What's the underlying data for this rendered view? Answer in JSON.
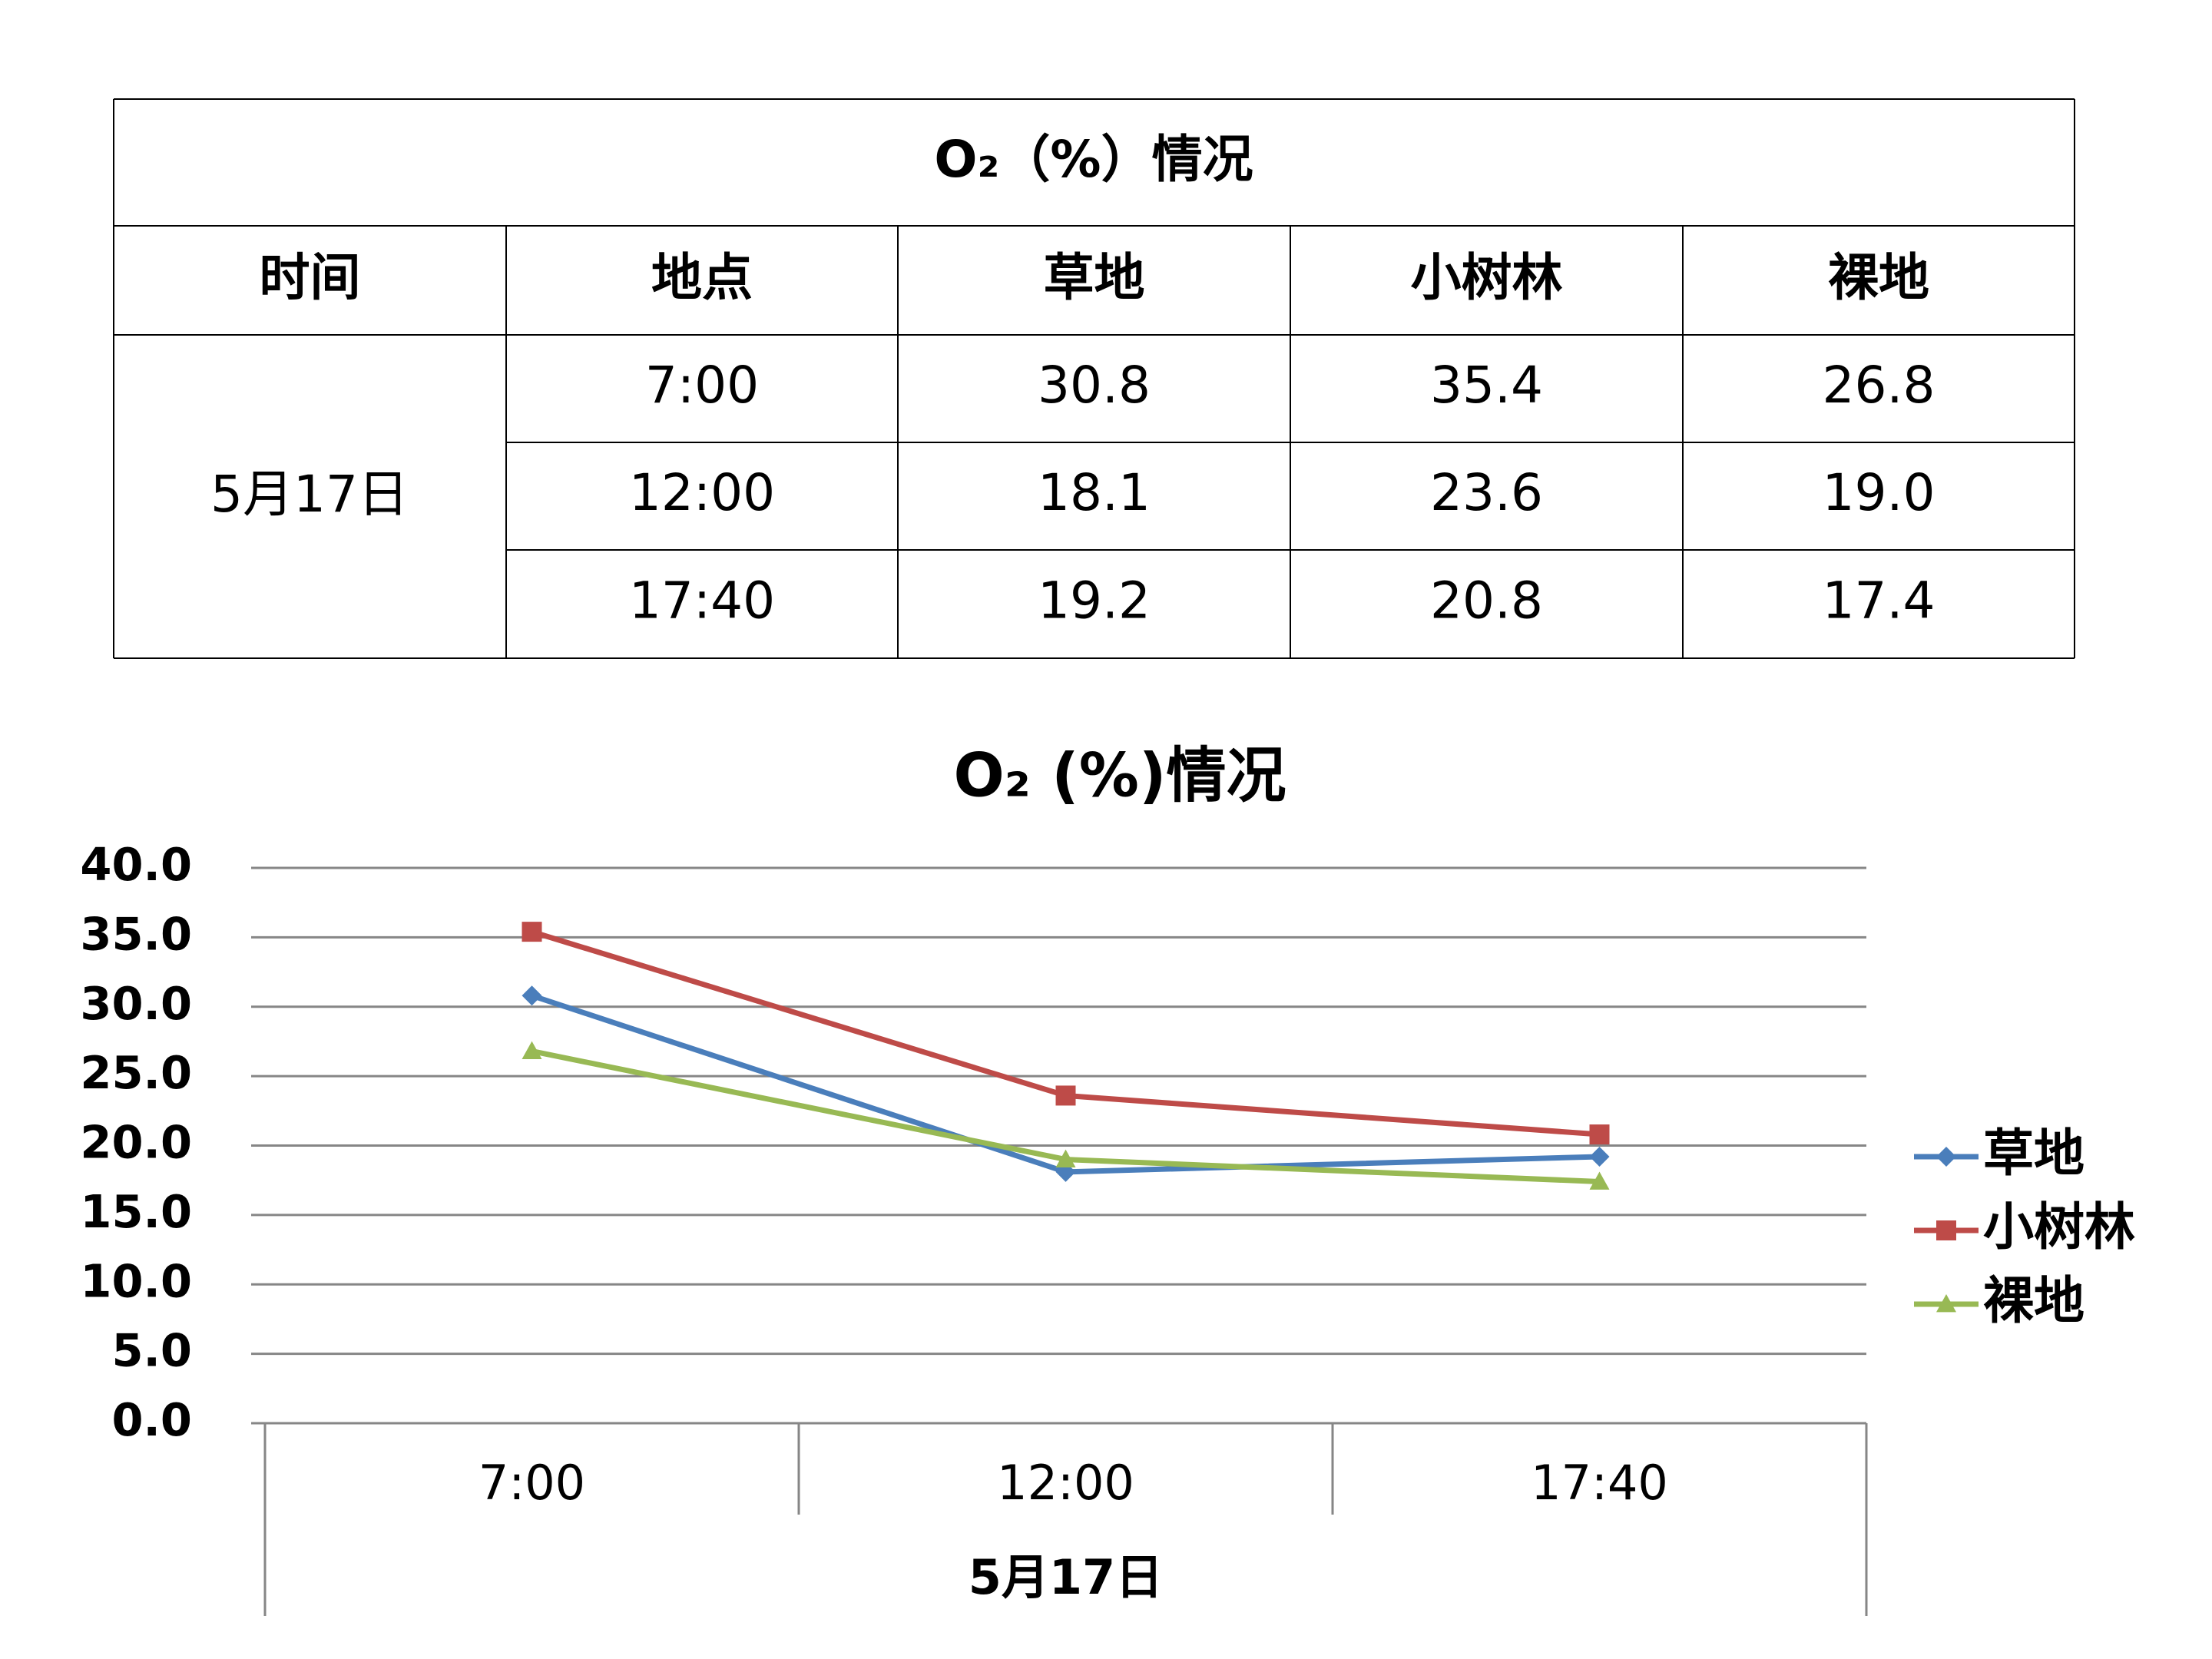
{
  "table": {
    "title": "O₂（%）情况",
    "header": [
      "时间",
      "地点",
      "草地",
      "小树林",
      "裸地"
    ],
    "date": "5月17日",
    "rows": [
      [
        "7:00",
        "30.8",
        "35.4",
        "26.8"
      ],
      [
        "12:00",
        "18.1",
        "23.6",
        "19.0"
      ],
      [
        "17:40",
        "19.2",
        "20.8",
        "17.4"
      ]
    ]
  },
  "chart_data": {
    "type": "line",
    "title": "O₂ (%)情况",
    "categories": [
      "7:00",
      "12:00",
      "17:40"
    ],
    "category_group": "5月17日",
    "series": [
      {
        "name": "草地",
        "color": "#4a7ebb",
        "marker": "diamond",
        "values": [
          30.8,
          18.1,
          19.2
        ]
      },
      {
        "name": "小树林",
        "color": "#be4b48",
        "marker": "square",
        "values": [
          35.4,
          23.6,
          20.8
        ]
      },
      {
        "name": "裸地",
        "color": "#98b954",
        "marker": "triangle",
        "values": [
          26.8,
          19.0,
          17.4
        ]
      }
    ],
    "ylim": [
      0,
      40
    ],
    "yticks": [
      {
        "value": 0,
        "label": "0.0"
      },
      {
        "value": 5,
        "label": "5.0"
      },
      {
        "value": 10,
        "label": "10.0"
      },
      {
        "value": 15,
        "label": "15.0"
      },
      {
        "value": 20,
        "label": "20.0"
      },
      {
        "value": 25,
        "label": "25.0"
      },
      {
        "value": 30,
        "label": "30.0"
      },
      {
        "value": 35,
        "label": "35.0"
      },
      {
        "value": 40,
        "label": "40.0"
      }
    ],
    "grid": true,
    "legend": "right"
  }
}
